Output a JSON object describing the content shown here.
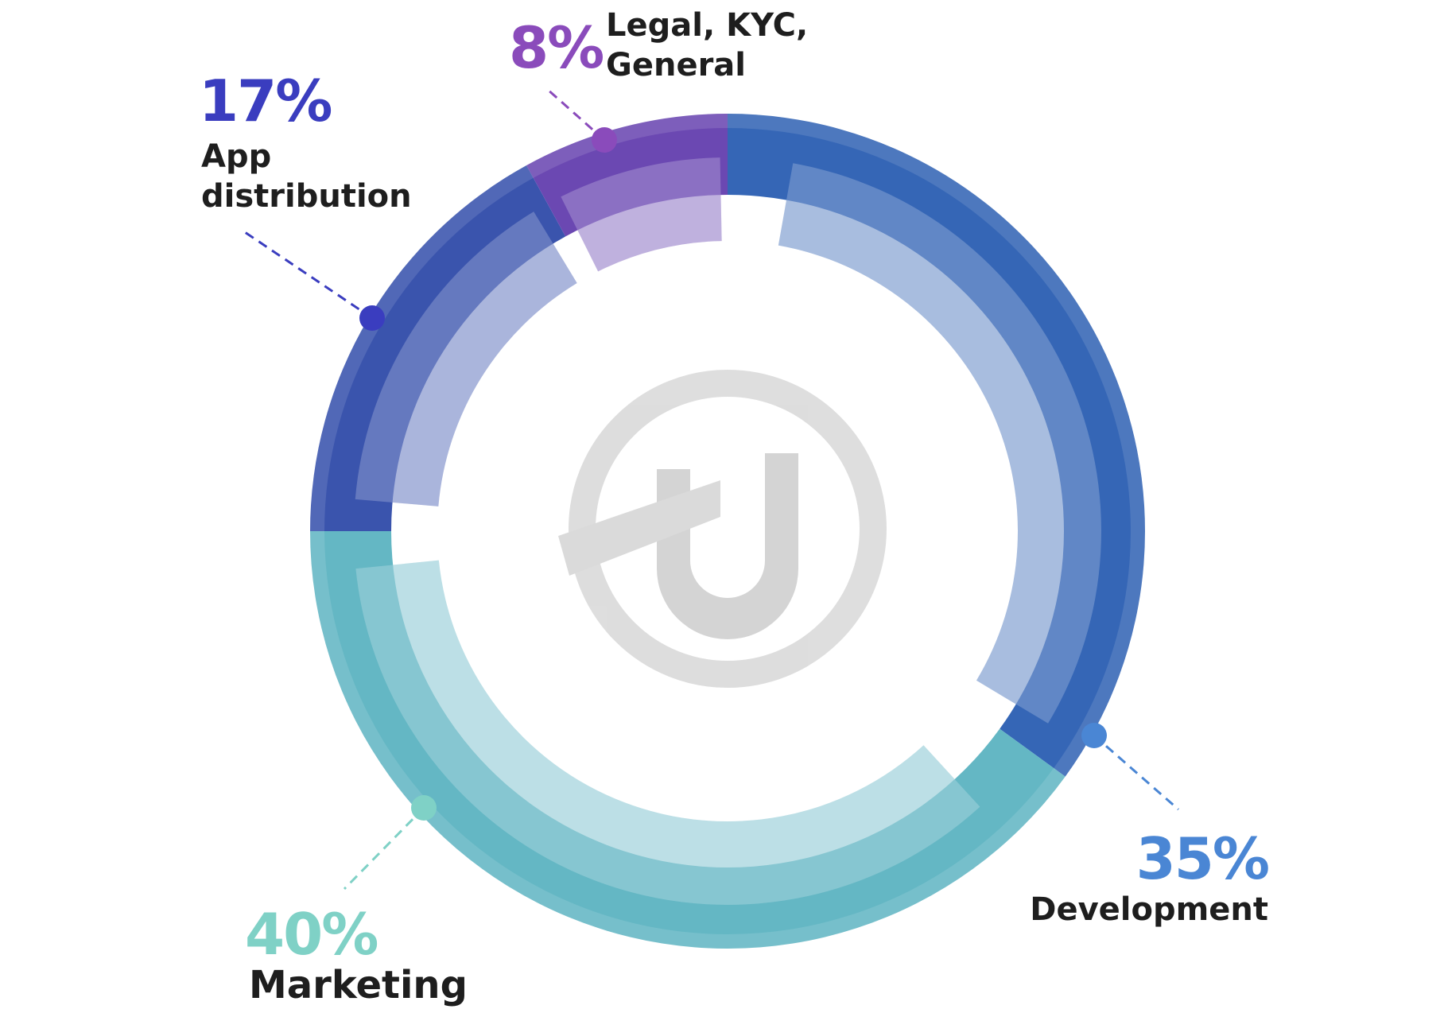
{
  "chart_data": {
    "type": "pie",
    "style": "donut",
    "title": "",
    "slices": [
      {
        "label_lines": [
          "Development"
        ],
        "value": 35,
        "value_text": "35%",
        "color": "#3566b6",
        "label_color": "#4a86d4"
      },
      {
        "label_lines": [
          "Marketing"
        ],
        "value": 40,
        "value_text": "40%",
        "color": "#64b7c4",
        "label_color": "#7fd1c6"
      },
      {
        "label_lines": [
          "App",
          "distribution"
        ],
        "value": 17,
        "value_text": "17%",
        "color": "#3a54ad",
        "label_color": "#3a3dbf"
      },
      {
        "label_lines": [
          "Legal, KYC,",
          "General"
        ],
        "value": 8,
        "value_text": "8%",
        "color": "#6b48b2",
        "label_color": "#8a4bbb"
      }
    ]
  },
  "center_logo": {
    "icon": "hu-logo-icon",
    "color": "#d4d4d4"
  }
}
